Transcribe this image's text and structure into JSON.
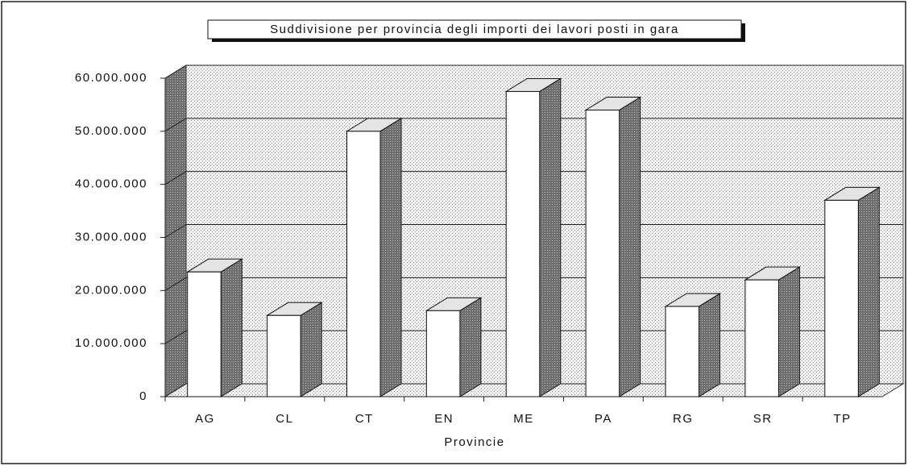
{
  "chart_data": {
    "type": "bar3d",
    "title": "Suddivisione per provincia degli importi dei lavori posti in gara",
    "x_label": "Provincie",
    "categories": [
      "AG",
      "CL",
      "CT",
      "EN",
      "ME",
      "PA",
      "RG",
      "SR",
      "TP"
    ],
    "values": [
      23500000,
      15300000,
      50000000,
      16200000,
      57500000,
      54000000,
      17000000,
      22000000,
      37000000
    ],
    "color": "#ffffff",
    "ylim": [
      0,
      60000000
    ],
    "yticks": [
      0,
      {
        "value": 10000000,
        "label": "10.000.000"
      },
      {
        "value": 20000000,
        "label": "20.000.000"
      },
      {
        "value": 30000000,
        "label": "30.000.000"
      },
      {
        "value": 40000000,
        "label": "40.000.000"
      },
      {
        "value": 50000000,
        "label": "50.000.000"
      },
      {
        "value": 60000000,
        "label": "60.000.000"
      }
    ],
    "grid": true
  }
}
